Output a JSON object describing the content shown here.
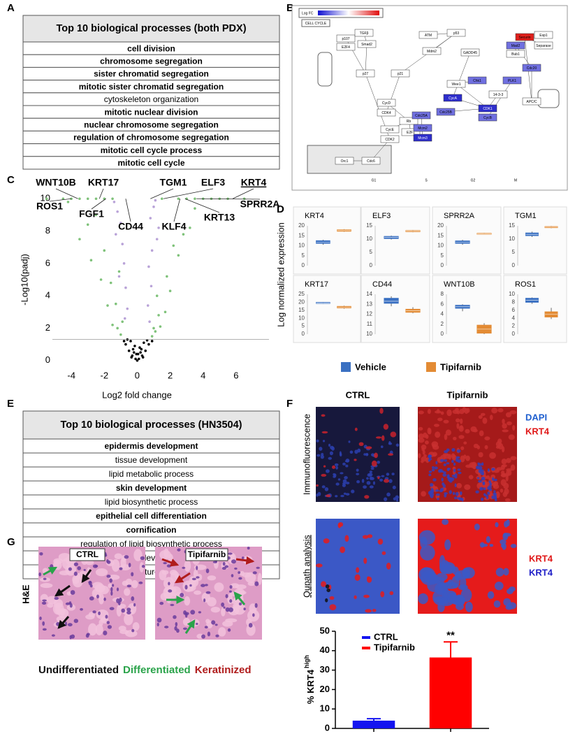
{
  "panel_labels": [
    "A",
    "B",
    "C",
    "D",
    "E",
    "F",
    "G"
  ],
  "table_a": {
    "title": "Top 10 biological processes (both PDX)",
    "rows": [
      {
        "text": "cell division",
        "bold": true
      },
      {
        "text": "chromosome segregation",
        "bold": true
      },
      {
        "text": "sister chromatid segregation",
        "bold": true
      },
      {
        "text": "mitotic sister chromatid segregation",
        "bold": true
      },
      {
        "text": "cytoskeleton organization",
        "bold": false
      },
      {
        "text": "mitotic nuclear division",
        "bold": true
      },
      {
        "text": "nuclear chromosome segregation",
        "bold": true
      },
      {
        "text": "regulation of chromosome segregation",
        "bold": true
      },
      {
        "text": "mitotic cell cycle process",
        "bold": true
      },
      {
        "text": "mitotic cell cycle",
        "bold": true
      }
    ]
  },
  "pathway_b": {
    "legend_title": "Log FC",
    "title": "CELL CYCLE",
    "phases": [
      "G1",
      "S",
      "G2",
      "M"
    ],
    "nodes": [
      "p107",
      "E2F4",
      "TGFβ",
      "Smad2",
      "ATM",
      "p53",
      "Mdm2",
      "GADD45",
      "p21",
      "p27",
      "CycD",
      "CDK4",
      "Rb",
      "E2F1",
      "CycE",
      "CDK2",
      "Cdc25A",
      "Mcm2",
      "Mcm3",
      "Orc1",
      "Cdc6",
      "CycA",
      "CDK1",
      "CycB",
      "Cdc25B",
      "Chk1",
      "Wee1",
      "PLK1",
      "Bub1",
      "Mad2",
      "Cdc20",
      "APC/C",
      "Securin",
      "Separase",
      "14-3-3",
      "Esp1"
    ]
  },
  "chart_data": [
    {
      "type": "scatter",
      "ylabel": "-Log10(padj)",
      "xlabel": "Log2 fold change",
      "xlim": [
        -6,
        8
      ],
      "ylim": [
        -0.4,
        10.4
      ],
      "xticks": [
        -4,
        -2,
        0,
        2,
        4,
        6
      ],
      "yticks": [
        0,
        2,
        4,
        6,
        8,
        10
      ],
      "threshold": 1.3,
      "groups": [
        {
          "color": "#000000",
          "x": [
            -0.1,
            0.1,
            -0.3,
            0.3,
            -0.5,
            0.5,
            -0.2,
            0.2,
            -0.7,
            0.7,
            -0.4,
            0.4,
            -0.15,
            0.15,
            -0.6,
            0.6,
            -0.35,
            0.35,
            -0.8,
            0.9,
            0,
            -0.05,
            0.05,
            -0.25,
            0.25
          ],
          "y": [
            0.1,
            0.1,
            0.3,
            0.3,
            0.6,
            0.6,
            0.5,
            0.5,
            1.0,
            1.0,
            1.2,
            1.1,
            0.9,
            0.8,
            1.3,
            1.25,
            0.2,
            0.2,
            1.2,
            1.2,
            0,
            0.4,
            0.4,
            0.7,
            0.7
          ]
        },
        {
          "color": "#7fc27a",
          "x": [
            -3.5,
            -2.8,
            -2.2,
            -1.8,
            -1.5,
            -1.2,
            -1.0,
            -2.5,
            -3.0,
            -1.6,
            -4.2,
            -2.0,
            -1.3,
            -0.9,
            -1.1,
            3.2,
            2.5,
            2.0,
            1.7,
            1.4,
            1.1,
            0.9,
            2.8,
            3.5,
            1.8,
            4.5,
            2.2,
            1.3,
            1.0,
            1.2,
            -5.5,
            -4.5,
            -4,
            -3.5,
            -3,
            -2.5,
            -2,
            -1.5,
            1.5,
            2.5,
            3,
            3.5,
            4,
            5,
            5.5,
            6.5
          ],
          "y": [
            7.5,
            6.2,
            5.0,
            3.4,
            2.2,
            2.0,
            1.6,
            9.0,
            8.4,
            4.8,
            9.8,
            6.8,
            3.5,
            2.4,
            5.5,
            8.2,
            6.5,
            4.3,
            3.0,
            2.1,
            1.8,
            1.5,
            7.8,
            9.4,
            5.2,
            10,
            7.1,
            2.8,
            2.0,
            4.0,
            10,
            10,
            10,
            10,
            10,
            10,
            10,
            10,
            10,
            10,
            10,
            10,
            10,
            10,
            10,
            10
          ]
        },
        {
          "color": "#b9a3d8",
          "x": [
            -1.0,
            -0.8,
            -1.2,
            -0.7,
            -0.9,
            -1.4,
            -0.6,
            -1.1,
            -0.75,
            -1.3,
            0.8,
            0.7,
            1.0,
            0.9,
            1.2,
            0.65,
            1.1,
            0.85,
            1.3,
            0.75
          ],
          "y": [
            8.5,
            6.0,
            9.2,
            4.5,
            7.2,
            9.8,
            3.2,
            5.2,
            2.6,
            7.8,
            8.8,
            5.8,
            9.5,
            6.8,
            7.5,
            3.4,
            9.9,
            4.6,
            8.2,
            2.4
          ]
        }
      ],
      "annotations": [
        {
          "label": "WNT10B",
          "x": -3.6,
          "y": 10
        },
        {
          "label": "KRT17",
          "x": -2.3,
          "y": 10
        },
        {
          "label": "TGM1",
          "x": 0.8,
          "y": 10
        },
        {
          "label": "ELF3",
          "x": 1.6,
          "y": 10
        },
        {
          "label": "KRT4",
          "x": 5.8,
          "y": 10,
          "underline": true
        },
        {
          "label": "ROS1",
          "x": -4,
          "y": 10
        },
        {
          "label": "FGF1",
          "x": -1.9,
          "y": 10
        },
        {
          "label": "CD44",
          "x": -0.7,
          "y": 10
        },
        {
          "label": "KLF4",
          "x": 2.6,
          "y": 10
        },
        {
          "label": "KRT13",
          "x": 2.9,
          "y": 10
        },
        {
          "label": "SPRR2A",
          "x": 3.6,
          "y": 10
        }
      ]
    },
    {
      "type": "box",
      "title": "KRT4",
      "ylim": [
        0,
        20
      ],
      "yticks": [
        0,
        5,
        10,
        15,
        20
      ],
      "boxes": [
        [
          10.5,
          11.2,
          11.8,
          12.5,
          13
        ],
        [
          17,
          17.3,
          17.7,
          18,
          18.3
        ]
      ]
    },
    {
      "type": "box",
      "title": "ELF3",
      "ylim": [
        0,
        15
      ],
      "yticks": [
        0,
        5,
        10,
        15
      ],
      "boxes": [
        [
          9.8,
          10.2,
          10.6,
          11,
          11.3
        ],
        [
          12.6,
          12.8,
          13,
          13.2,
          13.4
        ]
      ]
    },
    {
      "type": "box",
      "title": "SPRR2A",
      "ylim": [
        0,
        20
      ],
      "yticks": [
        0,
        5,
        10,
        15,
        20
      ],
      "boxes": [
        [
          10.5,
          11.2,
          11.8,
          12.4,
          13
        ],
        [
          15.6,
          15.8,
          16,
          16.2,
          16.4
        ]
      ]
    },
    {
      "type": "box",
      "title": "TGM1",
      "ylim": [
        0,
        15
      ],
      "yticks": [
        0,
        5,
        10,
        15
      ],
      "boxes": [
        [
          10.8,
          11.3,
          11.8,
          12.3,
          12.8
        ],
        [
          14.1,
          14.3,
          14.5,
          14.7,
          14.9
        ]
      ]
    },
    {
      "type": "box",
      "title": "KRT17",
      "ylim": [
        0,
        25
      ],
      "yticks": [
        0,
        5,
        10,
        15,
        20,
        25
      ],
      "boxes": [
        [
          19,
          19.3,
          19.6,
          19.9,
          20.2
        ],
        [
          16,
          16.5,
          17,
          17.4,
          17.8
        ]
      ]
    },
    {
      "type": "box",
      "title": "CD44",
      "ylim": [
        10,
        14
      ],
      "yticks": [
        10,
        11,
        12,
        13,
        14
      ],
      "boxes": [
        [
          12.8,
          13.1,
          13.3,
          13.6,
          13.8
        ],
        [
          12.1,
          12.2,
          12.35,
          12.5,
          12.7
        ]
      ]
    },
    {
      "type": "box",
      "title": "WNT10B",
      "ylim": [
        0,
        8
      ],
      "yticks": [
        0,
        2,
        4,
        6,
        8
      ],
      "boxes": [
        [
          4.6,
          5.2,
          5.5,
          5.8,
          6
        ],
        [
          0,
          0.2,
          1,
          1.8,
          2.2
        ]
      ]
    },
    {
      "type": "box",
      "title": "ROS1",
      "ylim": [
        0,
        10
      ],
      "yticks": [
        0,
        2,
        4,
        6,
        8,
        10
      ],
      "boxes": [
        [
          7.6,
          8,
          8.5,
          9,
          9.2
        ],
        [
          3.8,
          4.3,
          5,
          5.6,
          6.6
        ]
      ]
    },
    {
      "type": "bar",
      "ylabel": "% KRT4",
      "ylabel_sup": "high",
      "ylim": [
        0,
        50
      ],
      "yticks": [
        0,
        10,
        20,
        30,
        40,
        50
      ],
      "categories": [
        null,
        null
      ],
      "legend": "upper left",
      "series": [
        {
          "name": "CTRL",
          "color": "#1414f0",
          "values": [
            4,
            null
          ],
          "errors": [
            1,
            null
          ]
        },
        {
          "name": "Tipifarnib",
          "color": "#ff0000",
          "values": [
            null,
            36.5
          ],
          "errors": [
            null,
            8
          ]
        }
      ],
      "annotations": [
        {
          "text": "**",
          "category": 1
        }
      ]
    }
  ],
  "panel_d": {
    "ylabel": "Log normalized expression",
    "legend": [
      {
        "name": "Vehicle",
        "color": "#3a70c2"
      },
      {
        "name": "Tipifarnib",
        "color": "#e38b34"
      }
    ]
  },
  "table_e": {
    "title": "Top 10 biological processes (HN3504)",
    "rows": [
      {
        "text": "epidermis development",
        "bold": true
      },
      {
        "text": "tissue development",
        "bold": false
      },
      {
        "text": "lipid metabolic process",
        "bold": false
      },
      {
        "text": "skin development",
        "bold": true
      },
      {
        "text": "lipid biosynthetic process",
        "bold": false
      },
      {
        "text": "epithelial cell differentiation",
        "bold": true
      },
      {
        "text": "cornification",
        "bold": true
      },
      {
        "text": "regulation of lipid biosynthetic process",
        "bold": false
      },
      {
        "text": "system development",
        "bold": false
      },
      {
        "text": "anatomical structure morphogenesis",
        "bold": false
      }
    ]
  },
  "panel_f": {
    "columns": [
      "CTRL",
      "Tipifarnib"
    ],
    "rows": [
      {
        "text": "Immunofluorescence",
        "underline": false
      },
      {
        "text": "Qupath analysis",
        "underline": true
      }
    ],
    "if_legend": [
      {
        "text": "DAPI",
        "color": "#1f5fcf"
      },
      {
        "text": "KRT4",
        "color": "#e01818"
      }
    ],
    "qupath_legend": [
      {
        "text": "KRT4",
        "color": "#e01818"
      },
      {
        "text": "KRT4",
        "color": "#2020c8"
      }
    ]
  },
  "panel_g": {
    "row_label": "H&E",
    "images": [
      "CTRL",
      "Tipifarnib"
    ],
    "caption": [
      {
        "text": "Undifferentiated",
        "color": "#111111"
      },
      {
        "text": "Differentiated",
        "color": "#2aa34a"
      },
      {
        "text": "Keratinized",
        "color": "#b01c1c"
      }
    ]
  }
}
